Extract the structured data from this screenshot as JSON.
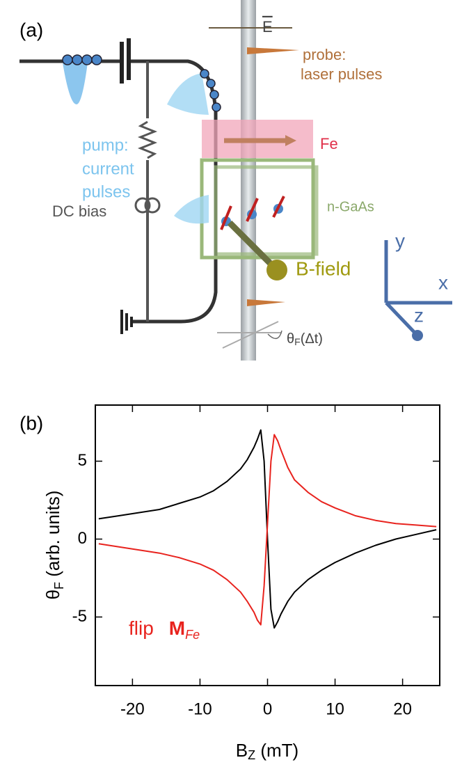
{
  "diagram": {
    "panel_label": "(a)",
    "field": "E",
    "probe": [
      "probe:",
      "laser pulses"
    ],
    "fe": "Fe",
    "pump": [
      "pump:",
      "current",
      "pulses"
    ],
    "gaas": "n-GaAs",
    "bias": "DC bias",
    "bfield": "B-field",
    "axes": [
      "y",
      "x",
      "z"
    ],
    "rotation": [
      "θ",
      "F",
      "(Δt)"
    ]
  },
  "chart_data": {
    "type": "line",
    "panel_label": "(b)",
    "xlabel": [
      "B",
      "Z",
      " (mT)"
    ],
    "ylabel": [
      "θ",
      "F",
      " (arb. units)"
    ],
    "annotation": [
      "flip",
      "M",
      "Fe"
    ],
    "x": [
      -25,
      -22,
      -19,
      -16,
      -13,
      -10,
      -8,
      -6,
      -4,
      -3,
      -2,
      -1.5,
      -1,
      -0.5,
      0,
      0.5,
      1,
      1.5,
      2,
      3,
      4,
      6,
      8,
      10,
      13,
      16,
      19,
      22,
      25
    ],
    "series": [
      {
        "color": "#000000",
        "values": [
          1.3,
          1.5,
          1.7,
          1.9,
          2.3,
          2.7,
          3.1,
          3.7,
          4.5,
          5.1,
          5.9,
          6.4,
          7.0,
          5.0,
          0,
          -4.5,
          -5.7,
          -5.3,
          -4.8,
          -4.0,
          -3.4,
          -2.6,
          -2.0,
          -1.5,
          -0.9,
          -0.4,
          0,
          0.3,
          0.6
        ]
      },
      {
        "color": "#e8231e",
        "values": [
          -0.3,
          -0.5,
          -0.7,
          -0.9,
          -1.2,
          -1.6,
          -2.0,
          -2.6,
          -3.4,
          -4.0,
          -4.7,
          -5.2,
          -5.5,
          -3.0,
          1.0,
          5.0,
          6.7,
          6.3,
          5.7,
          4.6,
          3.8,
          3.0,
          2.4,
          2.0,
          1.5,
          1.2,
          1.0,
          0.9,
          0.8
        ]
      }
    ],
    "xlim": [
      -25.5,
      25.5
    ],
    "xticks": [
      -20,
      -10,
      0,
      10,
      20
    ],
    "ylim": [
      -9.4,
      8.6
    ],
    "yticks": [
      -5,
      0,
      5
    ]
  }
}
